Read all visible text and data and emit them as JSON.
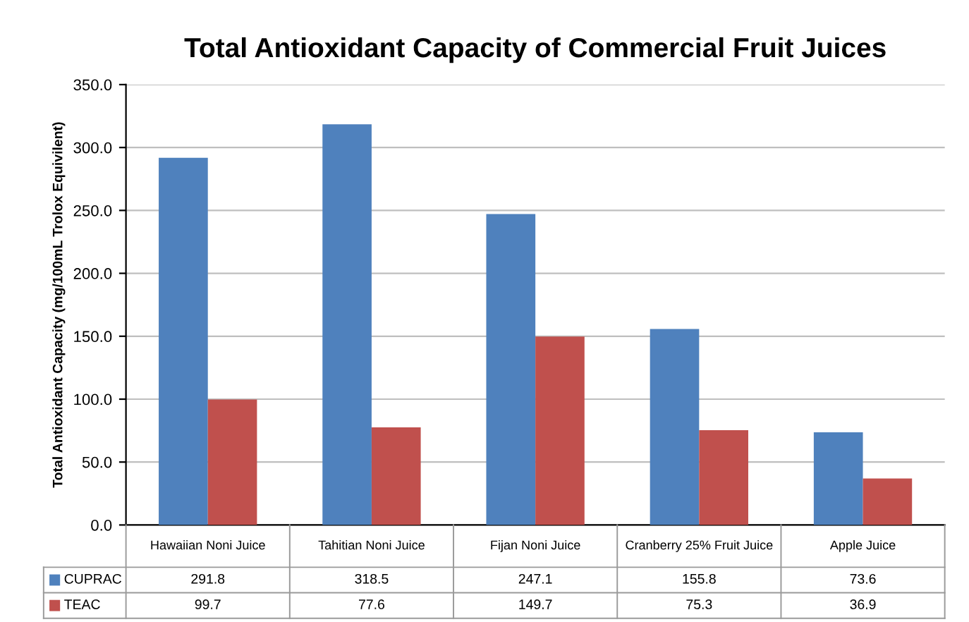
{
  "chart_data": {
    "type": "bar",
    "title": "Total Antioxidant Capacity of Commercial Fruit Juices",
    "ylabel": "Total Antioxidant Capacity (mg/100mL Trolox Equivilent)",
    "categories": [
      "Hawaiian Noni Juice",
      "Tahitian Noni Juice",
      "Fijan Noni Juice",
      "Cranberry 25% Fruit Juice",
      "Apple Juice"
    ],
    "series": [
      {
        "name": "CUPRAC",
        "color": "#4f81bd",
        "values": [
          291.8,
          318.5,
          247.1,
          155.8,
          73.6
        ]
      },
      {
        "name": "TEAC",
        "color": "#c0504d",
        "values": [
          99.7,
          77.6,
          149.7,
          75.3,
          36.9
        ]
      }
    ],
    "ylim": [
      0,
      350
    ],
    "yticks": [
      {
        "value": 0,
        "label": "0.0"
      },
      {
        "value": 50,
        "label": "50.0"
      },
      {
        "value": 100,
        "label": "100.0"
      },
      {
        "value": 150,
        "label": "150.0"
      },
      {
        "value": 200,
        "label": "200.0"
      },
      {
        "value": 250,
        "label": "250.0"
      },
      {
        "value": 300,
        "label": "300.0"
      },
      {
        "value": 350,
        "label": "350.0"
      }
    ],
    "grid": "y",
    "data_labels": true,
    "legend": "bottom"
  }
}
